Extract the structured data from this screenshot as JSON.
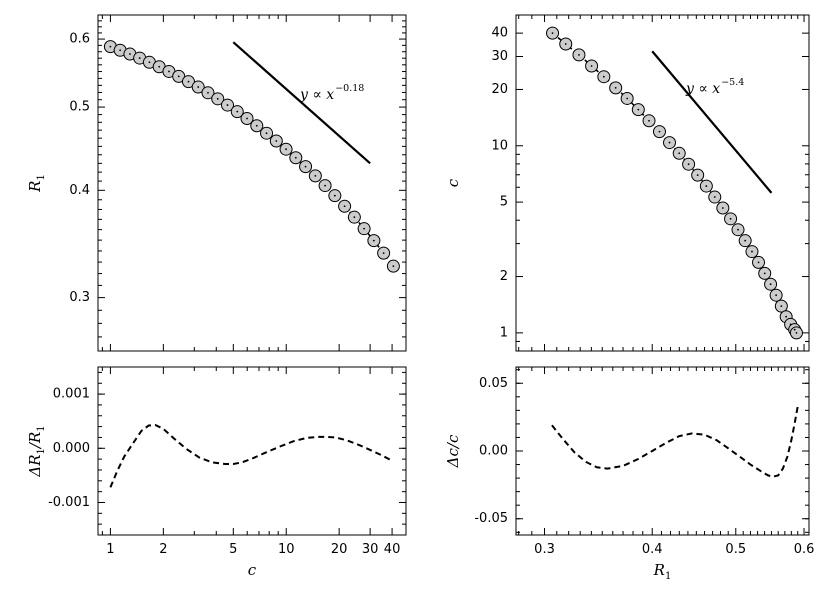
{
  "chart_data": [
    {
      "id": "top-left",
      "type": "scatter",
      "x_scale": "log",
      "y_scale": "log",
      "xlim": [
        0.85,
        48
      ],
      "ylim": [
        0.26,
        0.64
      ],
      "xticks": [
        1,
        2,
        5,
        10,
        20,
        30,
        40
      ],
      "xtick_labels_shown": false,
      "yticks": [
        0.3,
        0.4,
        0.5,
        0.6
      ],
      "ytick_labels": [
        "0.3",
        "0.4",
        "0.5",
        "0.6"
      ],
      "ylabel": "R",
      "ylabel_sub": "1",
      "points": {
        "x": [
          1.0,
          1.1363,
          1.2912,
          1.4672,
          1.6672,
          1.8945,
          2.1528,
          2.4462,
          2.7797,
          3.1586,
          3.5892,
          4.0785,
          4.6345,
          5.2663,
          5.9842,
          6.8,
          7.727,
          8.7803,
          9.9773,
          11.3374,
          12.883,
          14.6392,
          16.6349,
          18.9026,
          21.4795,
          24.4076,
          27.7349,
          31.5158,
          35.8122,
          40.6942
        ],
        "y": [
          0.588,
          0.5823,
          0.5764,
          0.5702,
          0.5638,
          0.5571,
          0.5501,
          0.5429,
          0.5353,
          0.5276,
          0.5195,
          0.5112,
          0.5027,
          0.4939,
          0.4849,
          0.4756,
          0.4662,
          0.4565,
          0.4466,
          0.4365,
          0.4262,
          0.4158,
          0.4051,
          0.3943,
          0.3833,
          0.3722,
          0.3609,
          0.3495,
          0.338,
          0.3264
        ]
      },
      "fit_line": true,
      "reference_line": {
        "x": [
          5,
          30
        ],
        "y": [
          0.595,
          0.43
        ]
      },
      "annotation": {
        "base": "y ∝ x",
        "exponent": "−0.18"
      }
    },
    {
      "id": "bottom-left",
      "type": "line",
      "x_scale": "log",
      "xlim": [
        0.85,
        48
      ],
      "ylim": [
        -0.0016,
        0.0015
      ],
      "xticks": [
        1,
        2,
        5,
        10,
        20,
        30,
        40
      ],
      "xtick_labels": [
        "1",
        "2",
        "5",
        "10",
        "20",
        "30",
        "40"
      ],
      "yticks": [
        -0.001,
        0.0,
        0.001
      ],
      "ytick_labels": [
        "-0.001",
        "0.000",
        "0.001"
      ],
      "xlabel": "c",
      "ylabel": "ΔR",
      "ylabel_sub": "1",
      "ylabel_tail": "/R",
      "ylabel_tail_sub": "1",
      "line_style": "dashed",
      "x": [
        1.0,
        1.1,
        1.2,
        1.35,
        1.5,
        1.65,
        1.8,
        2.0,
        2.3,
        2.7,
        3.2,
        3.8,
        4.5,
        5.0,
        5.6,
        6.5,
        7.5,
        9.0,
        11.0,
        13.0,
        15.0,
        17.0,
        19.0,
        22.0,
        26.0,
        30.0,
        35.0,
        40.0
      ],
      "y": [
        -0.00072,
        -0.0004,
        -0.00015,
        0.0001,
        0.00032,
        0.00042,
        0.00043,
        0.00036,
        0.00018,
        -1e-05,
        -0.00017,
        -0.00026,
        -0.00029,
        -0.00029,
        -0.00026,
        -0.00018,
        -9e-05,
        2e-05,
        0.00013,
        0.00019,
        0.00021,
        0.00021,
        0.0002,
        0.00015,
        6e-05,
        -3e-05,
        -0.00013,
        -0.00023
      ]
    },
    {
      "id": "top-right",
      "type": "scatter",
      "x_scale": "log",
      "y_scale": "log",
      "xlim": [
        0.278,
        0.608
      ],
      "ylim": [
        0.8,
        50
      ],
      "xticks": [
        0.3,
        0.4,
        0.5,
        0.6
      ],
      "xtick_labels_shown": false,
      "yticks": [
        1,
        2,
        5,
        10,
        20,
        30,
        40
      ],
      "ytick_labels": [
        "1",
        "2",
        "5",
        "10",
        "20",
        "30",
        "40"
      ],
      "ylabel": "c",
      "points": {
        "x": [
          0.3065,
          0.3175,
          0.3289,
          0.3402,
          0.3515,
          0.3628,
          0.3741,
          0.3854,
          0.3966,
          0.4078,
          0.4189,
          0.4299,
          0.4408,
          0.4516,
          0.4622,
          0.4727,
          0.483,
          0.4931,
          0.503,
          0.5127,
          0.5221,
          0.5313,
          0.5402,
          0.5487,
          0.5569,
          0.5647,
          0.572,
          0.5789,
          0.5852,
          0.588
        ],
        "y": [
          40.0,
          35.0,
          30.6,
          26.7,
          23.4,
          20.4,
          17.9,
          15.6,
          13.6,
          11.9,
          10.4,
          9.12,
          7.97,
          6.97,
          6.09,
          5.32,
          4.65,
          4.07,
          3.56,
          3.11,
          2.72,
          2.38,
          2.08,
          1.82,
          1.59,
          1.39,
          1.22,
          1.11,
          1.04,
          1.0
        ]
      },
      "fit_line": true,
      "reference_line": {
        "x": [
          0.4,
          0.55
        ],
        "y": [
          32,
          5.6
        ]
      },
      "annotation": {
        "base": "y ∝ x",
        "exponent": "−5.4"
      }
    },
    {
      "id": "bottom-right",
      "type": "line",
      "x_scale": "log",
      "xlim": [
        0.278,
        0.608
      ],
      "ylim": [
        -0.062,
        0.062
      ],
      "xticks": [
        0.3,
        0.4,
        0.5,
        0.6
      ],
      "xtick_labels": [
        "0.3",
        "0.4",
        "0.5",
        "0.6"
      ],
      "yticks": [
        -0.05,
        0.0,
        0.05
      ],
      "ytick_labels": [
        "-0.05",
        "0.00",
        "0.05"
      ],
      "xlabel": "R",
      "xlabel_sub": "1",
      "ylabel": "Δc/c",
      "line_style": "dashed",
      "x": [
        0.306,
        0.315,
        0.325,
        0.335,
        0.345,
        0.355,
        0.37,
        0.385,
        0.4,
        0.415,
        0.43,
        0.445,
        0.46,
        0.475,
        0.49,
        0.505,
        0.52,
        0.535,
        0.545,
        0.552,
        0.56,
        0.567,
        0.574,
        0.58,
        0.585,
        0.59
      ],
      "y": [
        0.019,
        0.009,
        -0.001,
        -0.008,
        -0.012,
        -0.013,
        -0.011,
        -0.006,
        0.0,
        0.006,
        0.011,
        0.013,
        0.012,
        0.008,
        0.002,
        -0.004,
        -0.01,
        -0.015,
        -0.018,
        -0.019,
        -0.018,
        -0.013,
        -0.004,
        0.008,
        0.02,
        0.033
      ]
    }
  ]
}
